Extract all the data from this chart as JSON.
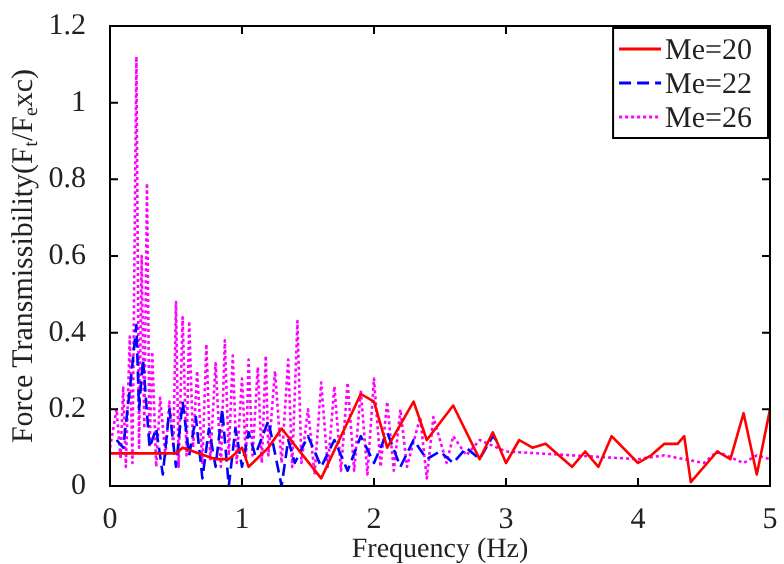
{
  "chart_data": {
    "type": "line",
    "xlabel": "Frequency (Hz)",
    "ylabel": "Force Transmissibility(F$_{t}$/F$_{e}$xc)",
    "xlim": [
      0,
      5
    ],
    "xticks": [
      0,
      1,
      2,
      3,
      4,
      5
    ],
    "ylim": [
      0,
      1.2
    ],
    "yticks": [
      0,
      0.2,
      0.4,
      0.6,
      0.8,
      1,
      1.2
    ],
    "grid": false,
    "legend": "top right",
    "marker": "none",
    "series": [
      {
        "name": "Me=20",
        "color": "#ff0000",
        "line_style": "solid",
        "x": [
          0,
          0.3,
          0.5,
          0.55,
          0.8,
          0.9,
          1.0,
          1.05,
          1.2,
          1.3,
          1.6,
          1.9,
          2.0,
          2.1,
          2.3,
          2.4,
          2.6,
          2.8,
          2.9,
          3.0,
          3.1,
          3.2,
          3.3,
          3.5,
          3.6,
          3.7,
          3.8,
          4.0,
          4.1,
          4.2,
          4.3,
          4.35,
          4.4,
          4.6,
          4.7,
          4.8,
          4.9,
          5.0
        ],
        "values": [
          0.085,
          0.085,
          0.085,
          0.1,
          0.07,
          0.07,
          0.1,
          0.05,
          0.1,
          0.15,
          0.02,
          0.24,
          0.22,
          0.1,
          0.22,
          0.12,
          0.21,
          0.07,
          0.14,
          0.06,
          0.12,
          0.1,
          0.11,
          0.05,
          0.09,
          0.05,
          0.13,
          0.06,
          0.08,
          0.11,
          0.11,
          0.13,
          0.01,
          0.09,
          0.07,
          0.19,
          0.03,
          0.2
        ]
      },
      {
        "name": "Me=22",
        "color": "#0000ff",
        "line_style": "dashed",
        "x": [
          0.05,
          0.1,
          0.15,
          0.2,
          0.22,
          0.25,
          0.3,
          0.35,
          0.4,
          0.45,
          0.5,
          0.55,
          0.6,
          0.65,
          0.7,
          0.75,
          0.8,
          0.85,
          0.9,
          0.95,
          1.0,
          1.05,
          1.1,
          1.2,
          1.3,
          1.35,
          1.4,
          1.5,
          1.6,
          1.7,
          1.8,
          1.9,
          2.0,
          2.1,
          2.2,
          2.3,
          2.4,
          2.5,
          2.6,
          2.7,
          2.8,
          2.9,
          2.95
        ],
        "values": [
          0.12,
          0.1,
          0.25,
          0.42,
          0.2,
          0.33,
          0.1,
          0.15,
          0.03,
          0.2,
          0.05,
          0.22,
          0.08,
          0.18,
          0.02,
          0.15,
          0.05,
          0.2,
          0.0,
          0.15,
          0.05,
          0.14,
          0.08,
          0.17,
          0.0,
          0.12,
          0.06,
          0.13,
          0.05,
          0.12,
          0.04,
          0.13,
          0.06,
          0.14,
          0.05,
          0.12,
          0.07,
          0.09,
          0.06,
          0.1,
          0.07,
          0.13,
          0.11
        ]
      },
      {
        "name": "Me=26",
        "color": "#ff00ff",
        "line_style": "dotted",
        "x": [
          0,
          0.05,
          0.08,
          0.1,
          0.12,
          0.15,
          0.17,
          0.2,
          0.22,
          0.24,
          0.26,
          0.28,
          0.3,
          0.32,
          0.35,
          0.38,
          0.42,
          0.45,
          0.48,
          0.5,
          0.52,
          0.55,
          0.58,
          0.6,
          0.63,
          0.66,
          0.7,
          0.73,
          0.76,
          0.8,
          0.84,
          0.87,
          0.9,
          0.93,
          0.96,
          1.0,
          1.03,
          1.05,
          1.08,
          1.12,
          1.15,
          1.18,
          1.2,
          1.25,
          1.3,
          1.35,
          1.38,
          1.42,
          1.45,
          1.5,
          1.55,
          1.6,
          1.65,
          1.7,
          1.75,
          1.8,
          1.85,
          1.9,
          1.95,
          2.0,
          2.05,
          2.1,
          2.15,
          2.2,
          2.25,
          2.35,
          2.4,
          2.45,
          2.55,
          2.6,
          2.7,
          2.8,
          3.0,
          3.5,
          4.0,
          4.2,
          4.5,
          4.6,
          4.8,
          4.9,
          5.0
        ],
        "values": [
          0.1,
          0.2,
          0.07,
          0.26,
          0.05,
          0.39,
          0.06,
          1.12,
          0.1,
          0.6,
          0.15,
          0.79,
          0.1,
          0.35,
          0.05,
          0.23,
          0.08,
          0.22,
          0.1,
          0.48,
          0.05,
          0.44,
          0.08,
          0.43,
          0.1,
          0.3,
          0.06,
          0.37,
          0.07,
          0.32,
          0.05,
          0.38,
          0.08,
          0.34,
          0.06,
          0.28,
          0.07,
          0.33,
          0.08,
          0.31,
          0.06,
          0.34,
          0.08,
          0.3,
          0.06,
          0.33,
          0.05,
          0.43,
          0.06,
          0.2,
          0.03,
          0.27,
          0.05,
          0.26,
          0.04,
          0.27,
          0.04,
          0.25,
          0.03,
          0.28,
          0.05,
          0.22,
          0.04,
          0.2,
          0.05,
          0.18,
          0.02,
          0.18,
          0.06,
          0.13,
          0.08,
          0.12,
          0.09,
          0.08,
          0.07,
          0.08,
          0.06,
          0.09,
          0.06,
          0.08,
          0.07
        ]
      }
    ]
  }
}
